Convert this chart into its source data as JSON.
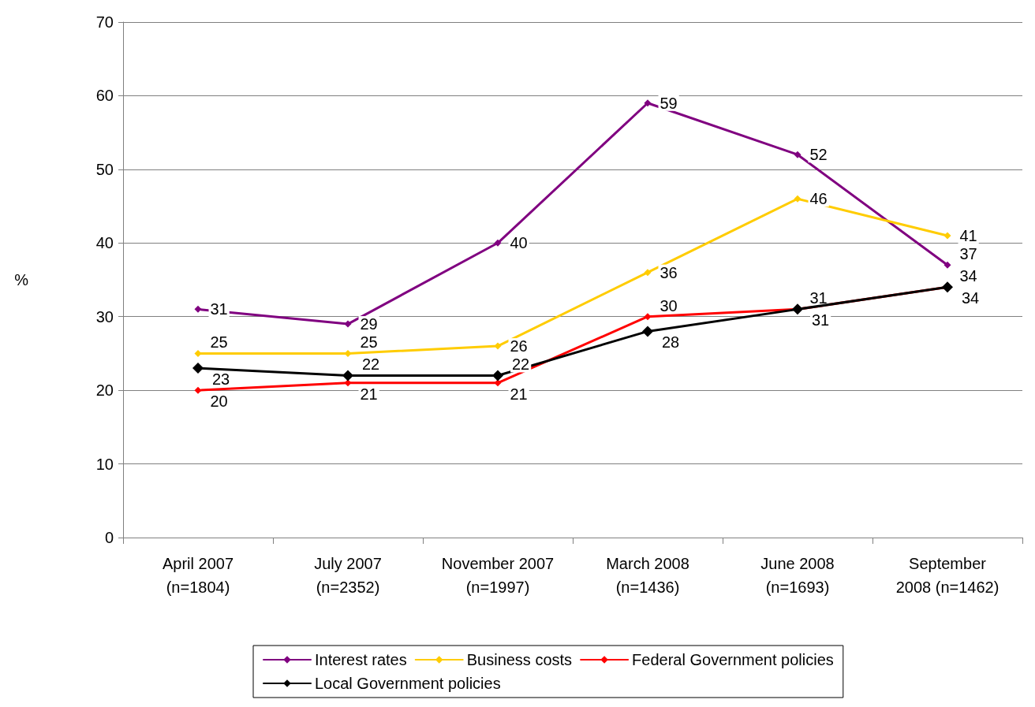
{
  "chart_data": {
    "type": "line",
    "ylabel": "%",
    "categories": [
      "April 2007\n(n=1804)",
      "July 2007\n(n=2352)",
      "November 2007\n(n=1997)",
      "March 2008\n(n=1436)",
      "June 2008\n(n=1693)",
      "September\n2008 (n=1462)"
    ],
    "series": [
      {
        "name": "Interest rates",
        "color": "#800080",
        "values": [
          31,
          29,
          40,
          59,
          52,
          37
        ]
      },
      {
        "name": "Business costs",
        "color": "#ffcc00",
        "values": [
          25,
          25,
          26,
          36,
          46,
          41
        ]
      },
      {
        "name": "Federal Government policies",
        "color": "#ff0000",
        "values": [
          20,
          21,
          21,
          30,
          31,
          34
        ]
      },
      {
        "name": "Local Government policies",
        "color": "#000000",
        "values": [
          23,
          22,
          22,
          28,
          31,
          34
        ]
      }
    ],
    "ylim": [
      0,
      70
    ],
    "yticks": [
      0,
      10,
      20,
      30,
      40,
      50,
      60,
      70
    ],
    "grid": "y",
    "legend": "bottom",
    "marker": "diamond",
    "data_labels": true
  }
}
